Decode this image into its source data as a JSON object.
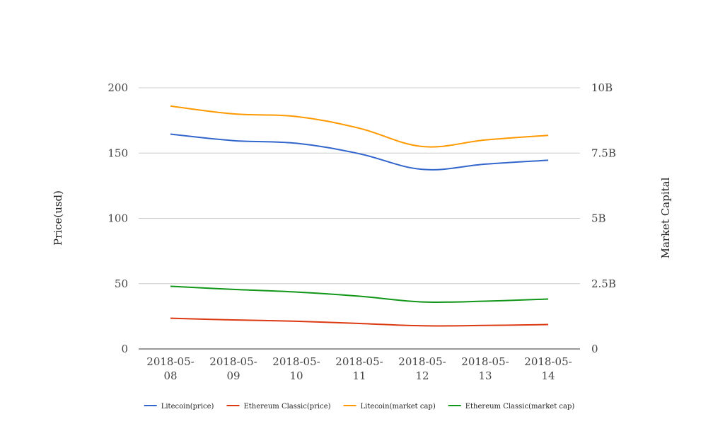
{
  "chart_data": {
    "type": "line",
    "title": "",
    "x": [
      "2018-05-08",
      "2018-05-09",
      "2018-05-10",
      "2018-05-11",
      "2018-05-12",
      "2018-05-13",
      "2018-05-14"
    ],
    "x_tick_lines": [
      [
        "2018-05-",
        "08"
      ],
      [
        "2018-05-",
        "09"
      ],
      [
        "2018-05-",
        "10"
      ],
      [
        "2018-05-",
        "11"
      ],
      [
        "2018-05-",
        "12"
      ],
      [
        "2018-05-",
        "13"
      ],
      [
        "2018-05-",
        "14"
      ]
    ],
    "y_left": {
      "label": "Price(usd)",
      "range": [
        0,
        200
      ],
      "ticks": [
        0,
        50,
        100,
        150,
        200
      ],
      "tick_labels": [
        "0",
        "50",
        "100",
        "150",
        "200"
      ]
    },
    "y_right": {
      "label": "Market Capital",
      "range": [
        0,
        10000000000
      ],
      "ticks": [
        0,
        2500000000,
        5000000000,
        7500000000,
        10000000000
      ],
      "tick_labels": [
        "0",
        "2.5B",
        "5B",
        "7.5B",
        "10B"
      ]
    },
    "grid": true,
    "legend_position": "bottom",
    "series": [
      {
        "name": "Litecoin(price)",
        "axis": "left",
        "color": "#3366cc",
        "values": [
          164.5,
          159.5,
          157.5,
          149.5,
          137.5,
          141.5,
          144.5
        ]
      },
      {
        "name": "Ethereum Classic(price)",
        "axis": "left",
        "color": "#dc3912",
        "values": [
          23.5,
          22.2,
          21.2,
          19.5,
          17.7,
          18.0,
          18.7
        ]
      },
      {
        "name": "Litecoin(market cap)",
        "axis": "right",
        "color": "#ff9900",
        "values": [
          9300000000,
          9000000000,
          8900000000,
          8450000000,
          7750000000,
          8000000000,
          8180000000
        ]
      },
      {
        "name": "Ethereum Classic(market cap)",
        "axis": "right",
        "color": "#109618",
        "values": [
          2400000000,
          2280000000,
          2180000000,
          2020000000,
          1800000000,
          1830000000,
          1910000000
        ]
      }
    ]
  }
}
